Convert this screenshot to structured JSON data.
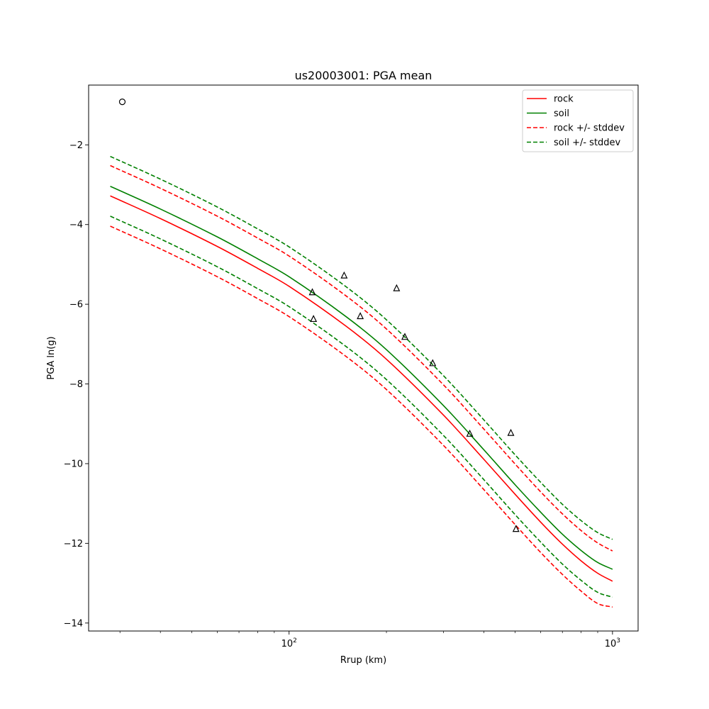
{
  "chart_data": {
    "type": "line",
    "title": "us20003001: PGA mean",
    "xlabel": "Rrup (km)",
    "ylabel": "PGA ln(g)",
    "xscale": "log",
    "xlim": [
      24,
      1200
    ],
    "ylim": [
      -14.2,
      -0.5
    ],
    "x_ticks": [
      {
        "value": 100,
        "base": "10",
        "exp": "2"
      },
      {
        "value": 1000,
        "base": "10",
        "exp": "3"
      }
    ],
    "y_ticks": [
      {
        "value": -2,
        "label": "−2"
      },
      {
        "value": -4,
        "label": "−4"
      },
      {
        "value": -6,
        "label": "−6"
      },
      {
        "value": -8,
        "label": "−8"
      },
      {
        "value": -10,
        "label": "−10"
      },
      {
        "value": -12,
        "label": "−12"
      },
      {
        "value": -14,
        "label": "−14"
      }
    ],
    "legend_position": "top-right",
    "x": [
      28,
      40,
      60,
      80,
      100,
      150,
      200,
      300,
      400,
      500,
      600,
      700,
      800,
      900,
      1000
    ],
    "series": [
      {
        "name": "rock",
        "color": "#ff0000",
        "style": "solid",
        "values": [
          -3.28,
          -3.85,
          -4.55,
          -5.1,
          -5.55,
          -6.55,
          -7.38,
          -8.78,
          -9.89,
          -10.77,
          -11.47,
          -12.02,
          -12.44,
          -12.75,
          -12.95
        ]
      },
      {
        "name": "soil",
        "color": "#008000",
        "style": "solid",
        "values": [
          -3.04,
          -3.61,
          -4.31,
          -4.86,
          -5.31,
          -6.31,
          -7.14,
          -8.54,
          -9.65,
          -10.53,
          -11.22,
          -11.77,
          -12.18,
          -12.48,
          -12.65
        ]
      },
      {
        "name": "rock +/- stddev",
        "color": "#ff0000",
        "style": "dashed",
        "display": "rock +/- stddev",
        "values": [
          -2.52,
          -3.09,
          -3.79,
          -4.34,
          -4.79,
          -5.79,
          -6.62,
          -8.02,
          -9.13,
          -10.01,
          -10.71,
          -11.26,
          -11.68,
          -11.99,
          -12.19
        ]
      },
      {
        "name": "rock -stddev",
        "color": "#ff0000",
        "style": "dashed",
        "display": "",
        "values": [
          -4.04,
          -4.61,
          -5.31,
          -5.86,
          -6.31,
          -7.31,
          -8.14,
          -9.54,
          -10.65,
          -11.53,
          -12.23,
          -12.78,
          -13.2,
          -13.51,
          -13.6
        ]
      },
      {
        "name": "soil +/- stddev",
        "color": "#008000",
        "style": "dashed",
        "display": "soil +/- stddev",
        "values": [
          -2.29,
          -2.86,
          -3.56,
          -4.11,
          -4.56,
          -5.56,
          -6.39,
          -7.79,
          -8.9,
          -9.78,
          -10.47,
          -11.02,
          -11.43,
          -11.73,
          -11.9
        ]
      },
      {
        "name": "soil -stddev",
        "color": "#008000",
        "style": "dashed",
        "display": "",
        "values": [
          -3.79,
          -4.36,
          -5.06,
          -5.61,
          -6.06,
          -7.06,
          -7.89,
          -9.29,
          -10.4,
          -11.28,
          -11.97,
          -12.52,
          -12.93,
          -13.23,
          -13.35
        ]
      }
    ],
    "points": [
      {
        "marker": "circle",
        "x": 30.5,
        "y": -0.92
      },
      {
        "marker": "triangle",
        "x": 118,
        "y": -5.7
      },
      {
        "marker": "triangle",
        "x": 119,
        "y": -6.37
      },
      {
        "marker": "triangle",
        "x": 148,
        "y": -5.28
      },
      {
        "marker": "triangle",
        "x": 166,
        "y": -6.3
      },
      {
        "marker": "triangle",
        "x": 215,
        "y": -5.6
      },
      {
        "marker": "triangle",
        "x": 228,
        "y": -6.82
      },
      {
        "marker": "triangle",
        "x": 278,
        "y": -7.48
      },
      {
        "marker": "triangle",
        "x": 362,
        "y": -9.25
      },
      {
        "marker": "triangle",
        "x": 485,
        "y": -9.23
      },
      {
        "marker": "triangle",
        "x": 503,
        "y": -11.64
      }
    ]
  }
}
